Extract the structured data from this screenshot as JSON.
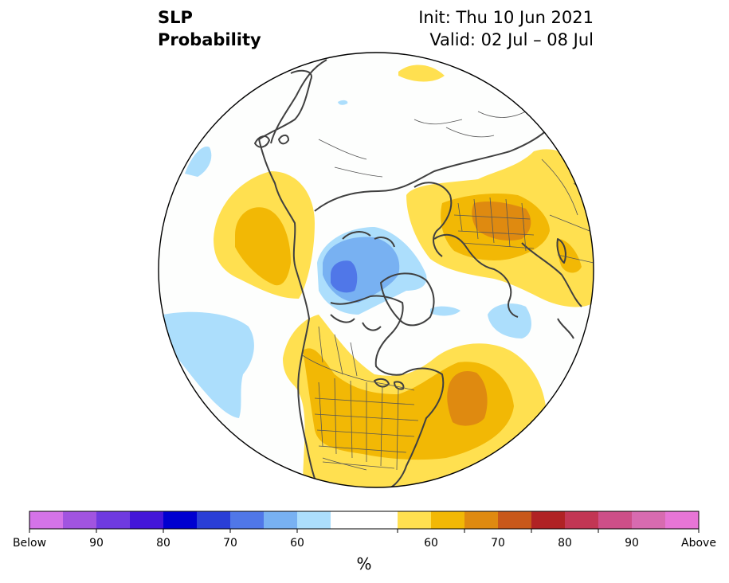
{
  "header": {
    "variable": "SLP",
    "product": "Probability",
    "init": "Init: Thu 10 Jun 2021",
    "valid": "Valid: 02 Jul – 08 Jul"
  },
  "colorbar": {
    "unit": "%",
    "bins": [
      {
        "color": "#d473e8"
      },
      {
        "color": "#a154e0"
      },
      {
        "color": "#6f3ae0"
      },
      {
        "color": "#4416d8"
      },
      {
        "color": "#0000d0"
      },
      {
        "color": "#2a3ed6"
      },
      {
        "color": "#5077e8"
      },
      {
        "color": "#78b1f2"
      },
      {
        "color": "#acdefc"
      },
      {
        "color": "#ffffff"
      },
      {
        "color": "#ffffff"
      },
      {
        "color": "#ffe050"
      },
      {
        "color": "#f2b805"
      },
      {
        "color": "#df8a10"
      },
      {
        "color": "#c8581a"
      },
      {
        "color": "#b02224"
      },
      {
        "color": "#c23654"
      },
      {
        "color": "#cd4f88"
      },
      {
        "color": "#d76bb0"
      },
      {
        "color": "#e775d6"
      }
    ],
    "labels": [
      "Below",
      "90",
      "80",
      "70",
      "60",
      "60",
      "70",
      "80",
      "90",
      "Above"
    ]
  },
  "map": {
    "projection": "north polar stereographic",
    "legend_placement": "bottom",
    "colors": {
      "light_blue": "#acdefc",
      "mid_blue": "#78b1f2",
      "dark_blue": "#5077e8",
      "yellow": "#ffe050",
      "gold": "#f2b805",
      "orange": "#df8a10",
      "coastline": "#404040",
      "border": "#555555"
    }
  }
}
